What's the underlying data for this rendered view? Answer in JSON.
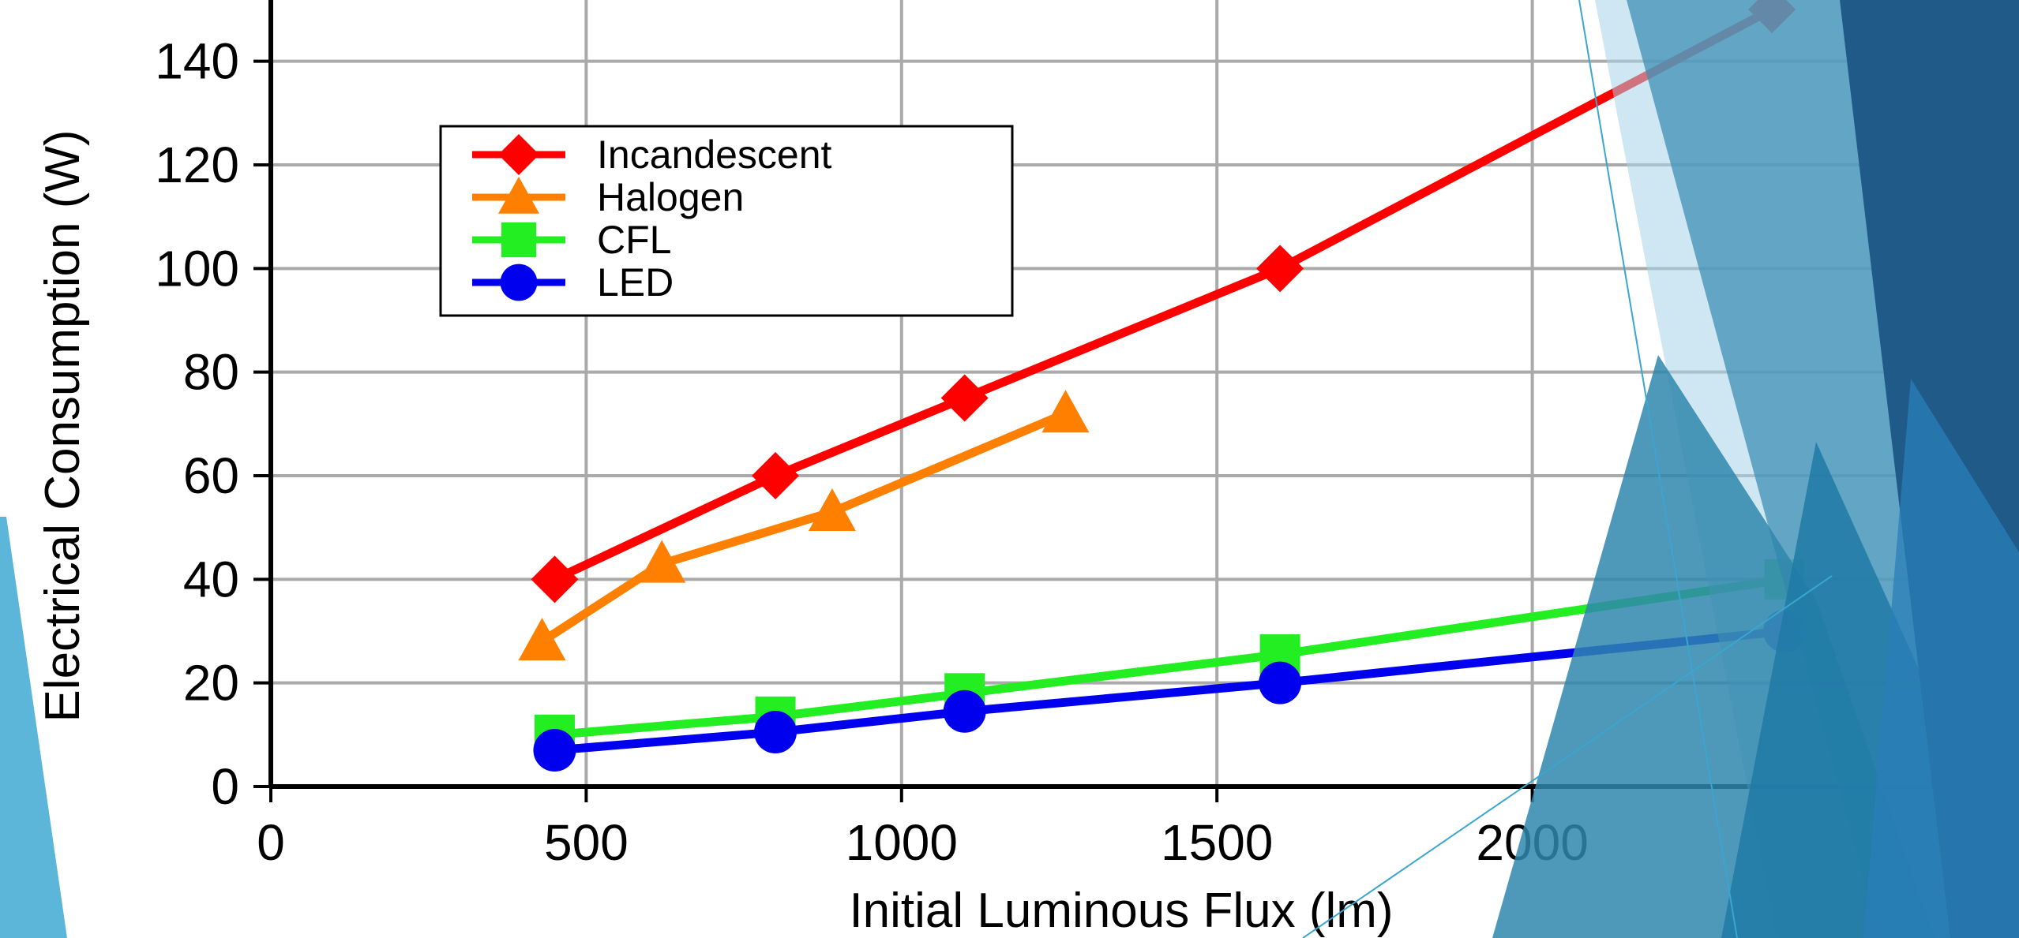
{
  "chart_data": {
    "type": "line",
    "title": "",
    "xlabel": "Initial Luminous Flux (lm)",
    "ylabel": "Electrical Consumption (W)",
    "xlim": [
      0,
      2500
    ],
    "ylim": [
      0,
      150
    ],
    "xticks": [
      0,
      500,
      1000,
      1500,
      2000
    ],
    "yticks": [
      0,
      20,
      40,
      60,
      80,
      100,
      120,
      140
    ],
    "grid": true,
    "legend_position": "top-left",
    "series": [
      {
        "name": "Incandescent",
        "color": "#ff0000",
        "marker": "diamond",
        "x": [
          450,
          800,
          1100,
          1600,
          2380
        ],
        "y": [
          40,
          60,
          75,
          100,
          150
        ]
      },
      {
        "name": "Halogen",
        "color": "#ff8000",
        "marker": "triangle",
        "x": [
          430,
          620,
          890,
          1260
        ],
        "y": [
          28,
          43,
          53,
          72
        ]
      },
      {
        "name": "CFL",
        "color": "#22ee22",
        "marker": "square",
        "x": [
          450,
          800,
          1100,
          1600,
          2400
        ],
        "y": [
          10,
          13.5,
          18,
          25.5,
          40
        ]
      },
      {
        "name": "LED",
        "color": "#0000ee",
        "marker": "circle",
        "x": [
          450,
          800,
          1100,
          1600,
          2400
        ],
        "y": [
          7,
          10.5,
          14.5,
          20,
          30
        ]
      }
    ]
  }
}
